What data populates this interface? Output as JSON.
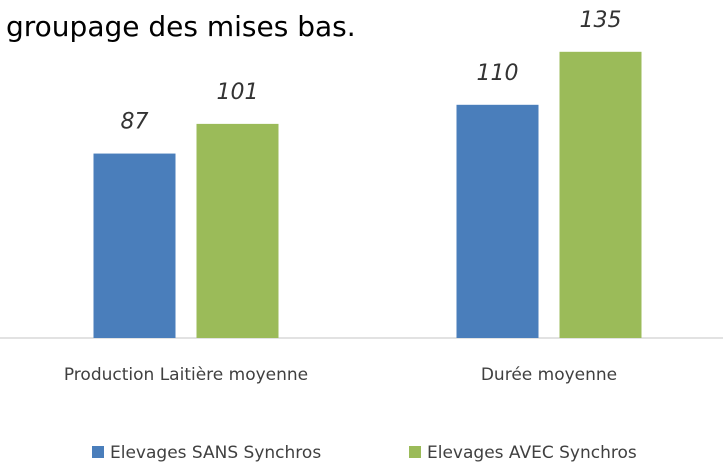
{
  "chart_data": {
    "type": "bar",
    "title": "groupage des mises bas.",
    "categories": [
      "Production Laitière moyenne",
      "Durée moyenne"
    ],
    "series": [
      {
        "name": "Elevages SANS Synchros",
        "color": "#4a7ebb",
        "values": [
          87,
          110
        ]
      },
      {
        "name": "Elevages AVEC Synchros",
        "color": "#9bbb59",
        "values": [
          101,
          135
        ]
      }
    ],
    "legend": "bottom"
  }
}
